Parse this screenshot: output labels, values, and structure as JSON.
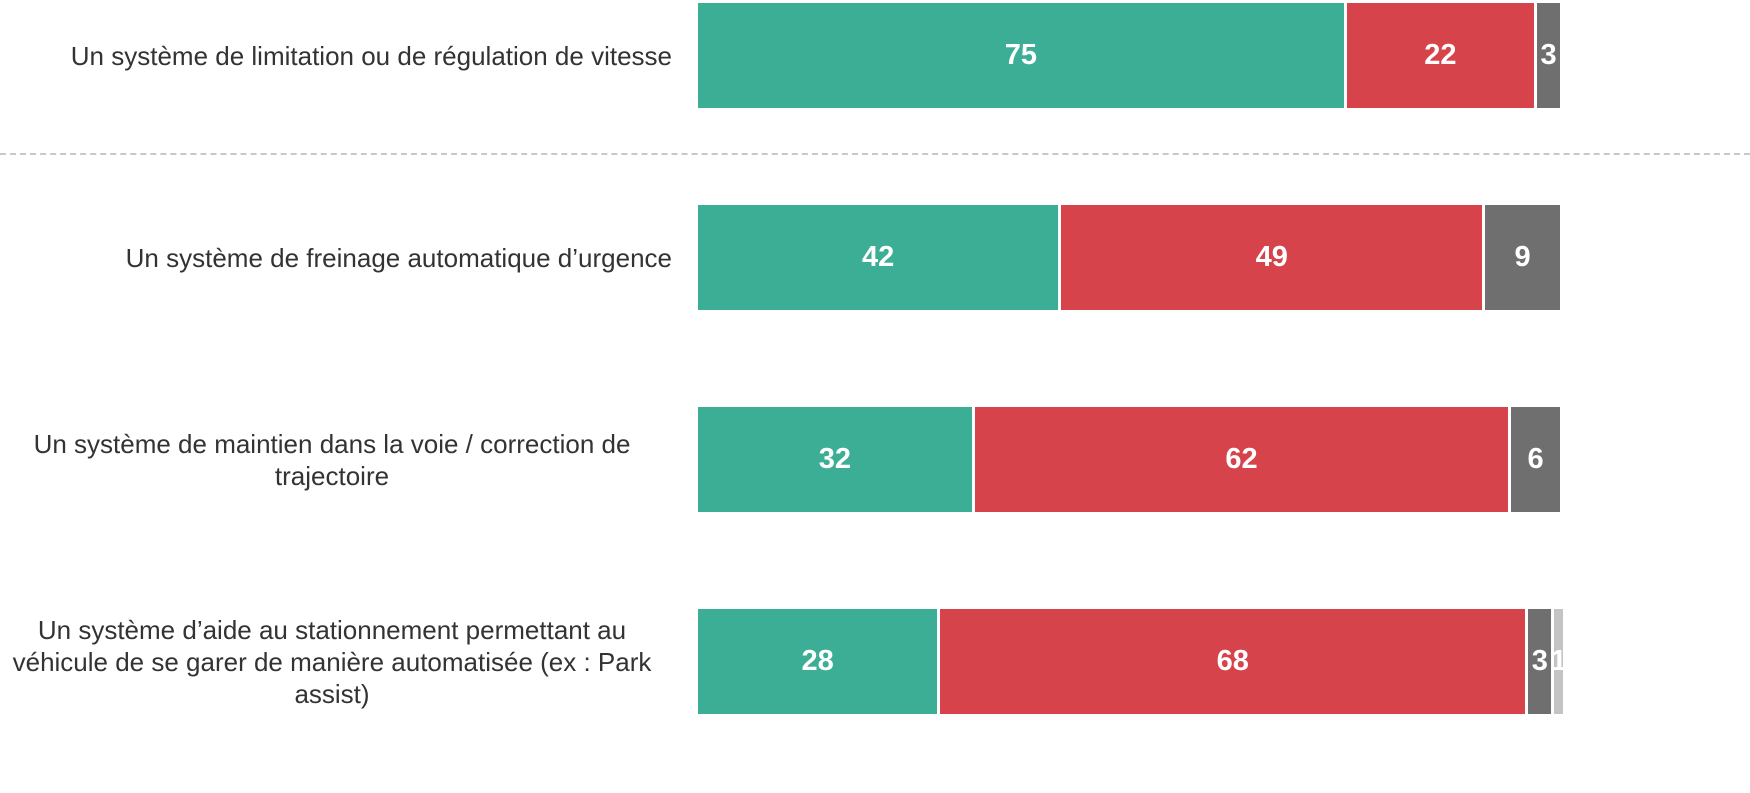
{
  "chart_data": {
    "type": "stacked_bar_horizontal",
    "categories": [
      "Un système de limitation ou de régulation de vitesse",
      "Un système de freinage automatique d’urgence",
      "Un système de maintien dans la voie / correction de trajectoire",
      "Un système d’aide au stationnement permettant au véhicule de se garer de manière automatisée (ex : Park assist)"
    ],
    "series": [
      {
        "color": "#3dae96",
        "values": [
          75,
          42,
          32,
          28
        ]
      },
      {
        "color": "#d6434b",
        "values": [
          22,
          49,
          62,
          68
        ]
      },
      {
        "color": "#6f6f6f",
        "values": [
          3,
          9,
          6,
          3
        ]
      },
      {
        "color": "#c4c4c4",
        "values": [
          null,
          null,
          null,
          1
        ]
      }
    ]
  }
}
